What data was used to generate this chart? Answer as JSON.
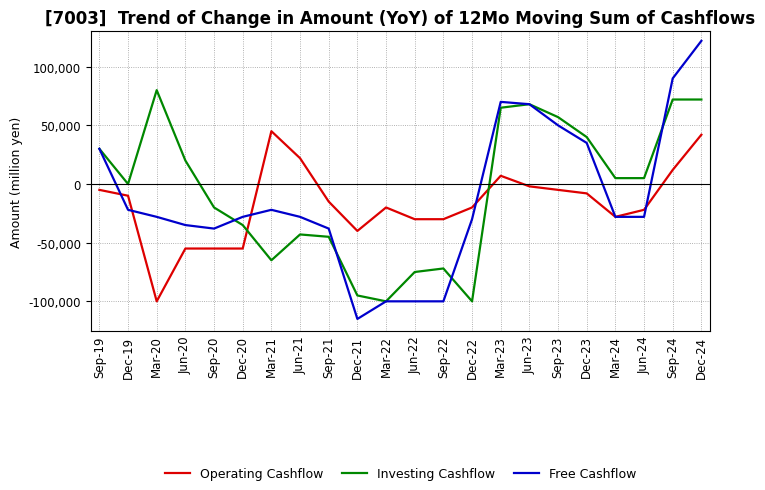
{
  "title": "[7003]  Trend of Change in Amount (YoY) of 12Mo Moving Sum of Cashflows",
  "ylabel": "Amount (million yen)",
  "categories": [
    "Sep-19",
    "Dec-19",
    "Mar-20",
    "Jun-20",
    "Sep-20",
    "Dec-20",
    "Mar-21",
    "Jun-21",
    "Sep-21",
    "Dec-21",
    "Mar-22",
    "Jun-22",
    "Sep-22",
    "Dec-22",
    "Mar-23",
    "Jun-23",
    "Sep-23",
    "Dec-23",
    "Mar-24",
    "Jun-24",
    "Sep-24",
    "Dec-24"
  ],
  "operating": [
    -5000,
    -10000,
    -100000,
    -55000,
    -55000,
    -55000,
    45000,
    22000,
    -15000,
    -40000,
    -20000,
    -30000,
    -30000,
    -20000,
    7000,
    -2000,
    -5000,
    -8000,
    -28000,
    -22000,
    12000,
    42000
  ],
  "investing": [
    30000,
    0,
    80000,
    20000,
    -20000,
    -35000,
    -65000,
    -43000,
    -45000,
    -95000,
    -100000,
    -75000,
    -72000,
    -100000,
    65000,
    68000,
    57000,
    40000,
    5000,
    5000,
    72000,
    72000
  ],
  "free": [
    30000,
    -22000,
    -28000,
    -35000,
    -38000,
    -28000,
    -22000,
    -28000,
    -38000,
    -115000,
    -100000,
    -100000,
    -100000,
    -30000,
    70000,
    68000,
    50000,
    35000,
    -28000,
    -28000,
    90000,
    122000
  ],
  "operating_color": "#dd0000",
  "investing_color": "#008800",
  "free_color": "#0000cc",
  "ylim": [
    -125000,
    130000
  ],
  "yticks": [
    -100000,
    -50000,
    0,
    50000,
    100000
  ],
  "background_color": "#ffffff",
  "grid_color": "#999999",
  "line_width": 1.6,
  "title_fontsize": 12,
  "axis_fontsize": 8.5,
  "legend_fontsize": 9
}
